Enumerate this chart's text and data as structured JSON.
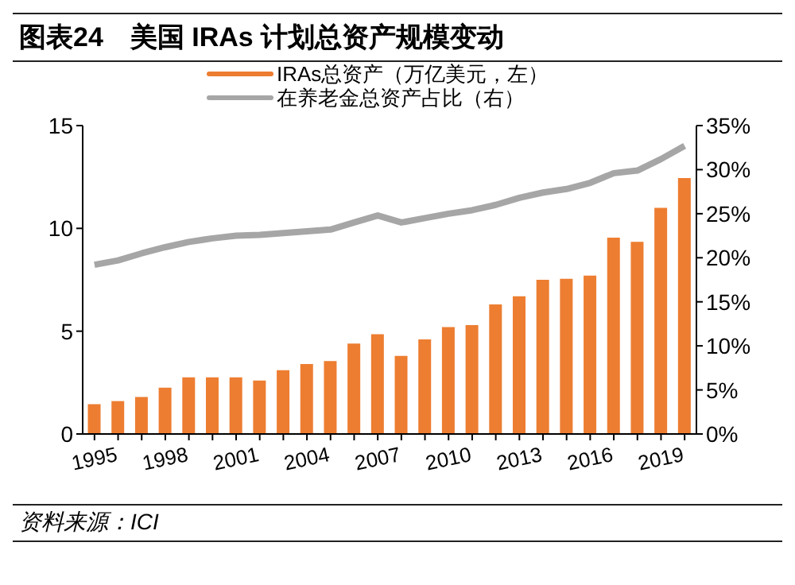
{
  "chart_data": {
    "type": "bar",
    "title": "图表24　美国 IRAs 计划总资产规模变动",
    "categories": [
      "1995",
      null,
      null,
      "1998",
      null,
      null,
      "2001",
      null,
      null,
      "2004",
      null,
      null,
      "2007",
      null,
      null,
      "2010",
      null,
      null,
      "2013",
      null,
      null,
      "2016",
      null,
      null,
      "2019",
      null
    ],
    "series": [
      {
        "name": "IRAs总资产（万亿美元，左）",
        "color": "#ed7d31",
        "values": [
          1.45,
          1.6,
          1.8,
          2.25,
          2.75,
          2.75,
          2.75,
          2.6,
          3.1,
          3.4,
          3.55,
          4.4,
          4.85,
          3.8,
          4.6,
          5.2,
          5.3,
          6.3,
          6.7,
          7.5,
          7.55,
          7.7,
          9.55,
          9.35,
          11.0,
          12.45
        ]
      },
      {
        "name": "在养老金总资产占比（右）",
        "type": "line",
        "axis": "y2",
        "color": "#a6a6a6",
        "values": [
          19.2,
          19.7,
          20.5,
          21.2,
          21.8,
          22.2,
          22.5,
          22.6,
          22.8,
          23,
          23.2,
          24,
          24.8,
          24,
          24.5,
          25,
          25.4,
          26,
          26.8,
          27.4,
          27.8,
          28.5,
          29.6,
          29.9,
          31.2,
          32.7
        ]
      }
    ],
    "ylim": [
      0,
      15
    ],
    "yticks": [
      0,
      5,
      10,
      15
    ],
    "y2lim": [
      0,
      35
    ],
    "y2ticks": [
      {
        "value": 0,
        "label": "0%"
      },
      {
        "value": 5,
        "label": "5%"
      },
      {
        "value": 10,
        "label": "10%"
      },
      {
        "value": 15,
        "label": "15%"
      },
      {
        "value": 20,
        "label": "20%"
      },
      {
        "value": 25,
        "label": "25%"
      },
      {
        "value": 30,
        "label": "30%"
      },
      {
        "value": 35,
        "label": "35%"
      }
    ],
    "legend": "top",
    "grid": false,
    "marker": "none",
    "annotations": [
      "资料来源：ICI"
    ]
  }
}
